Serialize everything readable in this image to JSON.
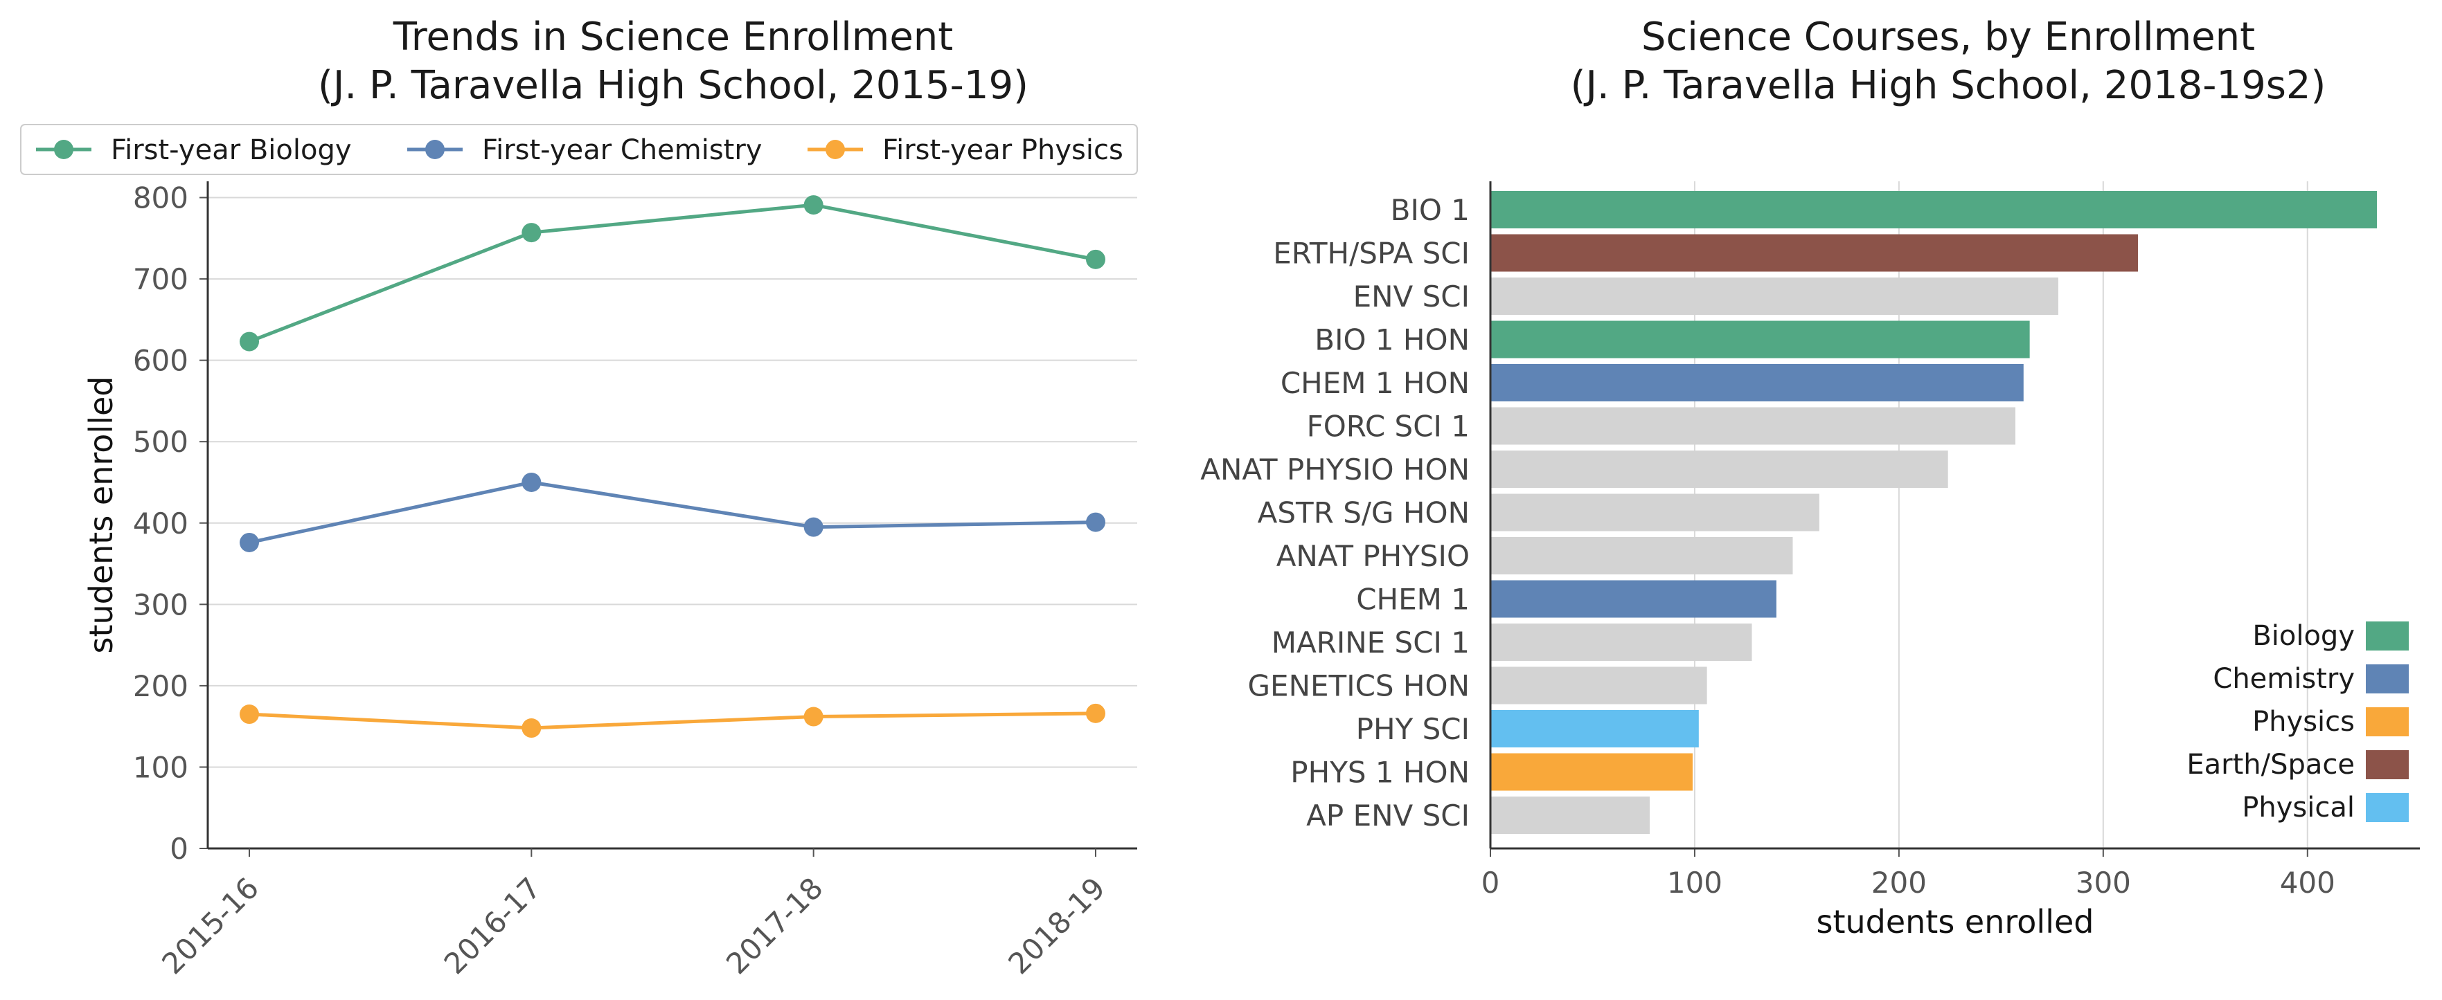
{
  "chart_data": [
    {
      "type": "line",
      "title": "Trends in Science Enrollment\n(J. P. Taravella High School, 2015-19)",
      "xlabel": "",
      "ylabel": "students enrolled",
      "categories": [
        "2015-16",
        "2016-17",
        "2017-18",
        "2018-19"
      ],
      "ylim": [
        0,
        820
      ],
      "yticks": [
        0,
        100,
        200,
        300,
        400,
        500,
        600,
        700,
        800
      ],
      "grid": "horizontal",
      "legend": "top",
      "series": [
        {
          "name": "First-year Biology",
          "color": "#52a884",
          "values": [
            623,
            757,
            791,
            724
          ]
        },
        {
          "name": "First-year Chemistry",
          "color": "#5f84b5",
          "values": [
            376,
            450,
            395,
            401
          ]
        },
        {
          "name": "First-year Physics",
          "color": "#f9a83a",
          "values": [
            165,
            148,
            162,
            166
          ]
        }
      ]
    },
    {
      "type": "bar",
      "orientation": "horizontal",
      "title": "Science Courses, by Enrollment\n(J. P. Taravella High School, 2018-19s2)",
      "xlabel": "students enrolled",
      "ylabel": "",
      "xlim": [
        0,
        455
      ],
      "xticks": [
        0,
        100,
        200,
        300,
        400
      ],
      "grid": "vertical",
      "legend": "bottom-right",
      "categories": [
        "BIO 1",
        "ERTH/SPA SCI",
        "ENV SCI",
        "BIO 1 HON",
        "CHEM 1 HON",
        "FORC SCI 1",
        "ANAT PHYSIO HON",
        "ASTR S/G HON",
        "ANAT PHYSIO",
        "CHEM 1",
        "MARINE SCI 1",
        "GENETICS HON",
        "PHY SCI",
        "PHYS 1 HON",
        "AP ENV SCI"
      ],
      "values": [
        434,
        317,
        278,
        264,
        261,
        257,
        224,
        161,
        148,
        140,
        128,
        106,
        102,
        99,
        78
      ],
      "groups": [
        "Biology",
        "Earth/Space",
        "",
        "Biology",
        "Chemistry",
        "",
        "",
        "",
        "",
        "Chemistry",
        "",
        "",
        "Physical",
        "Physics",
        ""
      ],
      "legend_entries": [
        {
          "name": "Biology",
          "color": "#52a884"
        },
        {
          "name": "Chemistry",
          "color": "#5f84b5"
        },
        {
          "name": "Physics",
          "color": "#f9a83a"
        },
        {
          "name": "Earth/Space",
          "color": "#8c5349"
        },
        {
          "name": "Physical",
          "color": "#63bff0"
        }
      ],
      "other_color": "#d3d3d3"
    }
  ]
}
